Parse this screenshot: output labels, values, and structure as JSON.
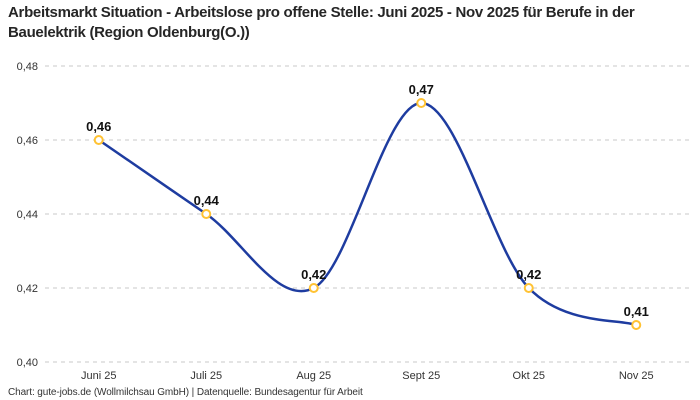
{
  "title": "Arbeitsmarkt Situation - Arbeitslose pro offene Stelle: Juni 2025 - Nov 2025 für Berufe in der Bauelektrik (Region Oldenburg(O.))",
  "footer": "Chart: gute-jobs.de (Wollmilchsau GmbH) | Datenquelle: Bundesagentur für Arbeit",
  "colors": {
    "line": "#1e3ca0",
    "marker_ring": "#ffc233",
    "gridline": "#c9c9c9",
    "title_text": "#262626",
    "tick_text": "#333333",
    "point_label_text": "#111111",
    "background": "#ffffff"
  },
  "chart_data": {
    "type": "line",
    "title": "Arbeitsmarkt Situation - Arbeitslose pro offene Stelle: Juni 2025 - Nov 2025 für Berufe in der Bauelektrik (Region Oldenburg(O.))",
    "categories": [
      "Juni 25",
      "Juli 25",
      "Aug 25",
      "Sept 25",
      "Okt 25",
      "Nov 25"
    ],
    "values": [
      0.46,
      0.44,
      0.42,
      0.47,
      0.42,
      0.41
    ],
    "point_labels": [
      "0,46",
      "0,44",
      "0,42",
      "0,47",
      "0,42",
      "0,41"
    ],
    "yticks": [
      0.4,
      0.42,
      0.44,
      0.46,
      0.48
    ],
    "ytick_labels": [
      "0,40",
      "0,42",
      "0,44",
      "0,46",
      "0,48"
    ],
    "ylim": [
      0.4,
      0.48
    ],
    "xlabel": "",
    "ylabel": "",
    "grid": "horizontal-dashed",
    "legend": "none",
    "smooth": true,
    "decimal_separator": ","
  }
}
